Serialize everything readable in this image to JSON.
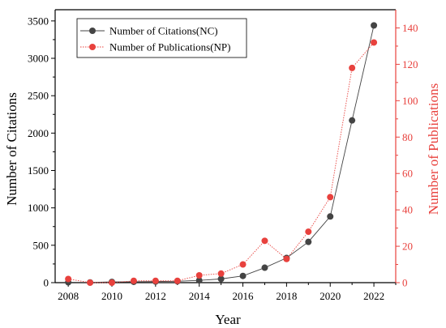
{
  "chart_data": {
    "type": "line",
    "xlabel": "Year",
    "ylabel_left": "Number of Citations",
    "ylabel_right": "Number of Publications",
    "xlim": [
      2007.4,
      2023.0
    ],
    "ylim_left": [
      0,
      3650
    ],
    "ylim_right": [
      0,
      150
    ],
    "x_ticks": [
      2008,
      2010,
      2012,
      2014,
      2016,
      2018,
      2020,
      2022
    ],
    "y_ticks_left": [
      0,
      500,
      1000,
      1500,
      2000,
      2500,
      3000,
      3500
    ],
    "y_ticks_right": [
      0,
      20,
      40,
      60,
      80,
      100,
      120,
      140
    ],
    "x": [
      2008,
      2009,
      2010,
      2011,
      2012,
      2013,
      2014,
      2015,
      2016,
      2017,
      2018,
      2019,
      2020,
      2021,
      2022
    ],
    "series": [
      {
        "name": "Number of Citations(NC)",
        "axis": "left",
        "color": "#444444",
        "values": [
          5,
          3,
          10,
          12,
          15,
          18,
          30,
          50,
          90,
          200,
          330,
          545,
          885,
          2170,
          3440
        ]
      },
      {
        "name": "Number of Publications(NP)",
        "axis": "right",
        "color": "#e8413d",
        "values": [
          2,
          0,
          0,
          1,
          1,
          1,
          4,
          5,
          10,
          23,
          13,
          28,
          47,
          118,
          132
        ]
      }
    ],
    "grid": false,
    "legend_position": "top-left"
  },
  "colors": {
    "axis": "#000000",
    "right_axis": "#e8413d"
  }
}
